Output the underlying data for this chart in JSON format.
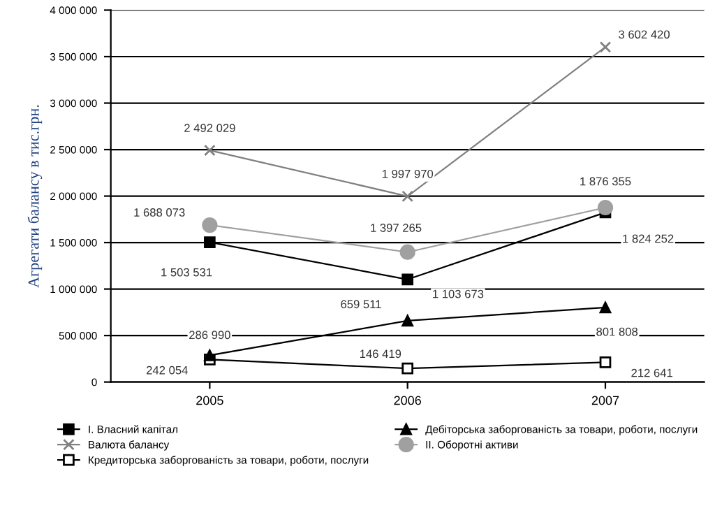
{
  "chart_data": {
    "type": "line",
    "ylabel": "Агрегати балансу в тис.грн.",
    "categories": [
      "2005",
      "2006",
      "2007"
    ],
    "ylim": [
      0,
      4000000
    ],
    "yticks": [
      {
        "value": 0,
        "label": "0"
      },
      {
        "value": 500000,
        "label": "500 000"
      },
      {
        "value": 1000000,
        "label": "1 000 000"
      },
      {
        "value": 1500000,
        "label": "1 500 000"
      },
      {
        "value": 2000000,
        "label": "2 000 000"
      },
      {
        "value": 2500000,
        "label": "2 500 000"
      },
      {
        "value": 3000000,
        "label": "3 000 000"
      },
      {
        "value": 3500000,
        "label": "3 500 000"
      },
      {
        "value": 4000000,
        "label": "4 000 000"
      }
    ],
    "grid": "y",
    "legend": "bottom",
    "series": [
      {
        "name": "І. Власний капітал",
        "color": "#000000",
        "marker": "square",
        "values": [
          1503531,
          1103673,
          1824252
        ],
        "value_labels": [
          "1 503 531",
          "1 103 673",
          "1 824 252"
        ]
      },
      {
        "name": "Валюта балансу",
        "color": "#808080",
        "marker": "cross",
        "values": [
          2492029,
          1997970,
          3602420
        ],
        "value_labels": [
          "2 492 029",
          "1 997 970",
          "3 602 420"
        ]
      },
      {
        "name": "Кредиторська заборгованість за товари, роботи, послуги",
        "color": "#000000",
        "marker": "square",
        "values": [
          242054,
          146419,
          212641
        ],
        "value_labels": [
          "242 054",
          "146 419",
          "212 641"
        ]
      },
      {
        "name": "Дебіторська заборгованість за товари, роботи, послуги",
        "color": "#000000",
        "marker": "triangle",
        "values": [
          286990,
          659511,
          801808
        ],
        "value_labels": [
          "286 990",
          "659 511",
          "801 808"
        ]
      },
      {
        "name": "ІІ. Оборотні активи",
        "color": "#a0a0a0",
        "marker": "circle",
        "values": [
          1688073,
          1397265,
          1876355
        ],
        "value_labels": [
          "1 688 073",
          "1 397 265",
          "1 876 355"
        ]
      }
    ]
  }
}
